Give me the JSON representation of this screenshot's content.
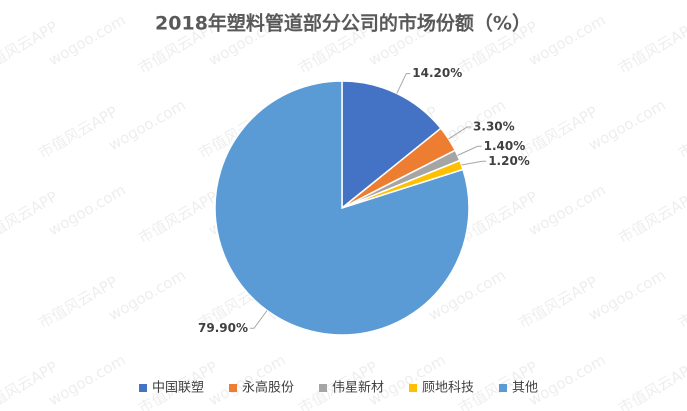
{
  "chart_data": {
    "type": "pie",
    "title": "2018年塑料管道部分公司的市场份额（%）",
    "categories": [
      "中国联塑",
      "永高股份",
      "伟星新材",
      "顾地科技",
      "其他"
    ],
    "values": [
      14.2,
      3.3,
      1.4,
      1.2,
      79.9
    ],
    "value_labels": [
      "14.20%",
      "3.30%",
      "1.40%",
      "1.20%",
      "79.90%"
    ],
    "colors": [
      "#4472c4",
      "#ed7d31",
      "#a5a5a5",
      "#ffc000",
      "#5b9bd5"
    ],
    "legend": "bottom",
    "watermark": [
      "市值风云APP",
      "wogoo.com"
    ]
  }
}
